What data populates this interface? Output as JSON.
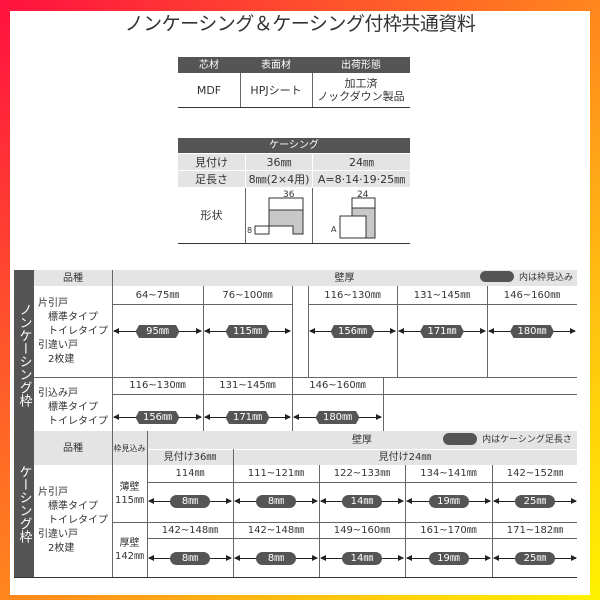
{
  "title": "ノンケーシング＆ケーシング付枠共通資料",
  "materials": {
    "headers": [
      "芯材",
      "表面材",
      "出荷形態"
    ],
    "values": [
      "MDF",
      "HPJシート",
      "加工済\nノックダウン製品"
    ]
  },
  "casing_spec": {
    "header": "ケーシング",
    "rows": [
      {
        "label": "見付け",
        "a": "36㎜",
        "b": "24㎜"
      },
      {
        "label": "足長さ",
        "a": "8㎜(2×4用)",
        "b": "A=8·14·19·25㎜"
      }
    ],
    "shape_label": "形状",
    "fig_a_dim": "36",
    "fig_a_side": "8",
    "fig_b_dim": "24",
    "fig_b_side": "A"
  },
  "non_casing": {
    "side_label": "ノンケーシング枠",
    "col_type": "品種",
    "col_wall": "壁厚",
    "legend": "内は枠見込み",
    "group1_types": "片引戸\n　標準タイプ\n　トイレタイプ\n引違い戸\n　2枚建",
    "group1": [
      {
        "range": "64~75㎜",
        "depth": "95㎜"
      },
      {
        "range": "76~100㎜",
        "depth": "115㎜"
      },
      {
        "range": "116~130㎜",
        "depth": "156㎜"
      },
      {
        "range": "131~145㎜",
        "depth": "171㎜"
      },
      {
        "range": "146~160㎜",
        "depth": "180㎜"
      }
    ],
    "group2_types": "引込み戸\n　標準タイプ\n　トイレタイプ",
    "group2": [
      {
        "range": "116~130㎜",
        "depth": "156㎜"
      },
      {
        "range": "131~145㎜",
        "depth": "171㎜"
      },
      {
        "range": "146~160㎜",
        "depth": "180㎜"
      }
    ]
  },
  "casing": {
    "side_label": "ケーシング枠",
    "col_type": "品種",
    "col_frame": "枠見込み",
    "col_wall": "壁厚",
    "legend": "内はケーシング足長さ",
    "sub36": "見付け36㎜",
    "sub24": "見付け24㎜",
    "types": "片引戸\n　標準タイプ\n　トイレタイプ\n引違い戸\n　2枚建",
    "thin_label": "薄壁\n115㎜",
    "thick_label": "厚壁\n142㎜",
    "thin": [
      {
        "range": "114㎜",
        "leg": "8㎜"
      },
      {
        "range": "111~121㎜",
        "leg": "8㎜"
      },
      {
        "range": "122~133㎜",
        "leg": "14㎜"
      },
      {
        "range": "134~141㎜",
        "leg": "19㎜"
      },
      {
        "range": "142~152㎜",
        "leg": "25㎜"
      }
    ],
    "thick": [
      {
        "range": "142~148㎜",
        "leg": "8㎜"
      },
      {
        "range": "142~148㎜",
        "leg": "8㎜"
      },
      {
        "range": "149~160㎜",
        "leg": "14㎜"
      },
      {
        "range": "161~170㎜",
        "leg": "19㎜"
      },
      {
        "range": "171~182㎜",
        "leg": "25㎜"
      }
    ]
  },
  "colors": {
    "header": "#555555",
    "pill": "#555555",
    "light": "#e4e4e4"
  }
}
